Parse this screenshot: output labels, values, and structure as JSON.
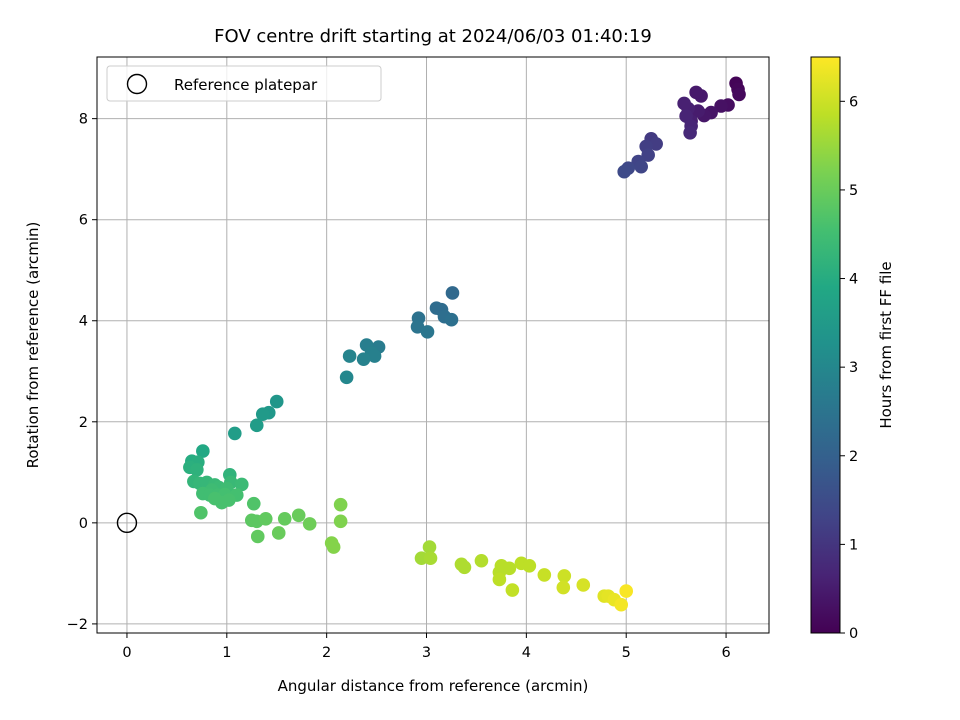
{
  "chart_data": {
    "type": "scatter",
    "title": "FOV centre drift starting at 2024/06/03 01:40:19",
    "xlabel": "Angular distance from reference (arcmin)",
    "ylabel": "Rotation from reference (arcmin)",
    "xlim": [
      -0.3,
      6.43
    ],
    "ylim": [
      -2.18,
      9.22
    ],
    "xticks": [
      "0",
      "1",
      "2",
      "3",
      "4",
      "5",
      "6"
    ],
    "yticks": [
      "−2",
      "0",
      "2",
      "4",
      "6",
      "8"
    ],
    "xtick_values": [
      0,
      1,
      2,
      3,
      4,
      5,
      6
    ],
    "ytick_values": [
      -2,
      0,
      2,
      4,
      6,
      8
    ],
    "grid": true,
    "legend": {
      "position": "top-left",
      "entries": [
        "Reference platepar"
      ]
    },
    "reference_point": {
      "x": 0,
      "y": 0,
      "marker": "open-circle",
      "label": "Reference platepar"
    },
    "colorbar": {
      "label": "Hours from first FF file",
      "range": [
        0,
        6.5
      ],
      "ticks": [
        "0",
        "1",
        "2",
        "3",
        "4",
        "5",
        "6"
      ],
      "tick_values": [
        0,
        1,
        2,
        3,
        4,
        5,
        6
      ],
      "colormap": "viridis"
    },
    "points": [
      {
        "x": 6.1,
        "y": 8.7,
        "c": 0.05
      },
      {
        "x": 6.12,
        "y": 8.58,
        "c": 0.1
      },
      {
        "x": 6.13,
        "y": 8.48,
        "c": 0.15
      },
      {
        "x": 6.02,
        "y": 8.27,
        "c": 0.25
      },
      {
        "x": 5.95,
        "y": 8.25,
        "c": 0.3
      },
      {
        "x": 5.85,
        "y": 8.12,
        "c": 0.35
      },
      {
        "x": 5.78,
        "y": 8.06,
        "c": 0.4
      },
      {
        "x": 5.75,
        "y": 8.45,
        "c": 0.45
      },
      {
        "x": 5.7,
        "y": 8.52,
        "c": 0.45
      },
      {
        "x": 5.72,
        "y": 8.15,
        "c": 0.5
      },
      {
        "x": 5.65,
        "y": 7.95,
        "c": 0.55
      },
      {
        "x": 5.62,
        "y": 8.2,
        "c": 0.6
      },
      {
        "x": 5.58,
        "y": 8.3,
        "c": 0.6
      },
      {
        "x": 5.6,
        "y": 8.05,
        "c": 0.65
      },
      {
        "x": 5.65,
        "y": 7.85,
        "c": 0.7
      },
      {
        "x": 5.64,
        "y": 7.72,
        "c": 0.75
      },
      {
        "x": 5.25,
        "y": 7.6,
        "c": 1.1
      },
      {
        "x": 5.3,
        "y": 7.5,
        "c": 1.15
      },
      {
        "x": 5.2,
        "y": 7.45,
        "c": 1.2
      },
      {
        "x": 5.22,
        "y": 7.28,
        "c": 1.25
      },
      {
        "x": 5.12,
        "y": 7.15,
        "c": 1.3
      },
      {
        "x": 5.15,
        "y": 7.05,
        "c": 1.35
      },
      {
        "x": 5.02,
        "y": 7.02,
        "c": 1.4
      },
      {
        "x": 4.98,
        "y": 6.95,
        "c": 1.45
      },
      {
        "x": 3.26,
        "y": 4.55,
        "c": 2.2
      },
      {
        "x": 3.15,
        "y": 4.22,
        "c": 2.3
      },
      {
        "x": 3.1,
        "y": 4.25,
        "c": 2.3
      },
      {
        "x": 3.18,
        "y": 4.08,
        "c": 2.35
      },
      {
        "x": 3.25,
        "y": 4.02,
        "c": 2.4
      },
      {
        "x": 2.92,
        "y": 4.05,
        "c": 2.45
      },
      {
        "x": 2.91,
        "y": 3.88,
        "c": 2.5
      },
      {
        "x": 3.01,
        "y": 3.78,
        "c": 2.55
      },
      {
        "x": 2.52,
        "y": 3.48,
        "c": 2.7
      },
      {
        "x": 2.4,
        "y": 3.52,
        "c": 2.75
      },
      {
        "x": 2.45,
        "y": 3.36,
        "c": 2.8
      },
      {
        "x": 2.48,
        "y": 3.3,
        "c": 2.8
      },
      {
        "x": 2.37,
        "y": 3.24,
        "c": 2.85
      },
      {
        "x": 2.23,
        "y": 3.3,
        "c": 2.9
      },
      {
        "x": 2.2,
        "y": 2.88,
        "c": 3.0
      },
      {
        "x": 1.5,
        "y": 2.4,
        "c": 3.4
      },
      {
        "x": 1.42,
        "y": 2.18,
        "c": 3.45
      },
      {
        "x": 1.36,
        "y": 2.15,
        "c": 3.5
      },
      {
        "x": 1.3,
        "y": 1.93,
        "c": 3.55
      },
      {
        "x": 1.08,
        "y": 1.77,
        "c": 3.6
      },
      {
        "x": 0.76,
        "y": 1.42,
        "c": 3.9
      },
      {
        "x": 0.65,
        "y": 1.22,
        "c": 4.0
      },
      {
        "x": 0.71,
        "y": 1.2,
        "c": 4.05
      },
      {
        "x": 0.63,
        "y": 1.1,
        "c": 4.1
      },
      {
        "x": 0.7,
        "y": 1.05,
        "c": 4.15
      },
      {
        "x": 1.03,
        "y": 0.95,
        "c": 4.2
      },
      {
        "x": 0.67,
        "y": 0.82,
        "c": 4.25
      },
      {
        "x": 0.73,
        "y": 0.78,
        "c": 4.3
      },
      {
        "x": 0.8,
        "y": 0.8,
        "c": 4.3
      },
      {
        "x": 0.88,
        "y": 0.75,
        "c": 4.35
      },
      {
        "x": 1.04,
        "y": 0.8,
        "c": 4.35
      },
      {
        "x": 1.15,
        "y": 0.76,
        "c": 4.4
      },
      {
        "x": 0.92,
        "y": 0.7,
        "c": 4.4
      },
      {
        "x": 1.0,
        "y": 0.68,
        "c": 4.45
      },
      {
        "x": 0.85,
        "y": 0.65,
        "c": 4.45
      },
      {
        "x": 0.76,
        "y": 0.58,
        "c": 4.5
      },
      {
        "x": 0.83,
        "y": 0.55,
        "c": 4.5
      },
      {
        "x": 0.91,
        "y": 0.55,
        "c": 4.5
      },
      {
        "x": 0.98,
        "y": 0.56,
        "c": 4.55
      },
      {
        "x": 1.1,
        "y": 0.55,
        "c": 4.55
      },
      {
        "x": 0.88,
        "y": 0.48,
        "c": 4.6
      },
      {
        "x": 0.95,
        "y": 0.4,
        "c": 4.6
      },
      {
        "x": 1.02,
        "y": 0.45,
        "c": 4.6
      },
      {
        "x": 1.27,
        "y": 0.38,
        "c": 4.7
      },
      {
        "x": 0.74,
        "y": 0.2,
        "c": 4.7
      },
      {
        "x": 1.25,
        "y": 0.05,
        "c": 4.85
      },
      {
        "x": 1.3,
        "y": 0.03,
        "c": 4.85
      },
      {
        "x": 1.39,
        "y": 0.08,
        "c": 4.9
      },
      {
        "x": 1.58,
        "y": 0.08,
        "c": 4.95
      },
      {
        "x": 1.72,
        "y": 0.15,
        "c": 5.0
      },
      {
        "x": 1.83,
        "y": -0.02,
        "c": 5.05
      },
      {
        "x": 1.52,
        "y": -0.2,
        "c": 5.0
      },
      {
        "x": 1.31,
        "y": -0.27,
        "c": 4.9
      },
      {
        "x": 2.14,
        "y": 0.36,
        "c": 5.25
      },
      {
        "x": 2.14,
        "y": 0.03,
        "c": 5.25
      },
      {
        "x": 2.05,
        "y": -0.4,
        "c": 5.3
      },
      {
        "x": 2.07,
        "y": -0.48,
        "c": 5.3
      },
      {
        "x": 3.03,
        "y": -0.48,
        "c": 5.6
      },
      {
        "x": 2.95,
        "y": -0.7,
        "c": 5.6
      },
      {
        "x": 3.04,
        "y": -0.7,
        "c": 5.65
      },
      {
        "x": 3.35,
        "y": -0.82,
        "c": 5.7
      },
      {
        "x": 3.38,
        "y": -0.88,
        "c": 5.7
      },
      {
        "x": 3.55,
        "y": -0.75,
        "c": 5.75
      },
      {
        "x": 3.75,
        "y": -0.85,
        "c": 5.8
      },
      {
        "x": 3.83,
        "y": -0.9,
        "c": 5.8
      },
      {
        "x": 3.95,
        "y": -0.8,
        "c": 5.85
      },
      {
        "x": 4.03,
        "y": -0.85,
        "c": 5.85
      },
      {
        "x": 3.73,
        "y": -0.98,
        "c": 5.8
      },
      {
        "x": 3.73,
        "y": -1.12,
        "c": 5.85
      },
      {
        "x": 3.86,
        "y": -1.33,
        "c": 5.9
      },
      {
        "x": 4.18,
        "y": -1.03,
        "c": 5.95
      },
      {
        "x": 4.38,
        "y": -1.05,
        "c": 6.0
      },
      {
        "x": 4.37,
        "y": -1.28,
        "c": 6.05
      },
      {
        "x": 4.57,
        "y": -1.23,
        "c": 6.1
      },
      {
        "x": 4.78,
        "y": -1.45,
        "c": 6.2
      },
      {
        "x": 4.82,
        "y": -1.45,
        "c": 6.25
      },
      {
        "x": 4.88,
        "y": -1.52,
        "c": 6.3
      },
      {
        "x": 4.95,
        "y": -1.62,
        "c": 6.4
      },
      {
        "x": 5.0,
        "y": -1.35,
        "c": 6.45
      }
    ]
  }
}
